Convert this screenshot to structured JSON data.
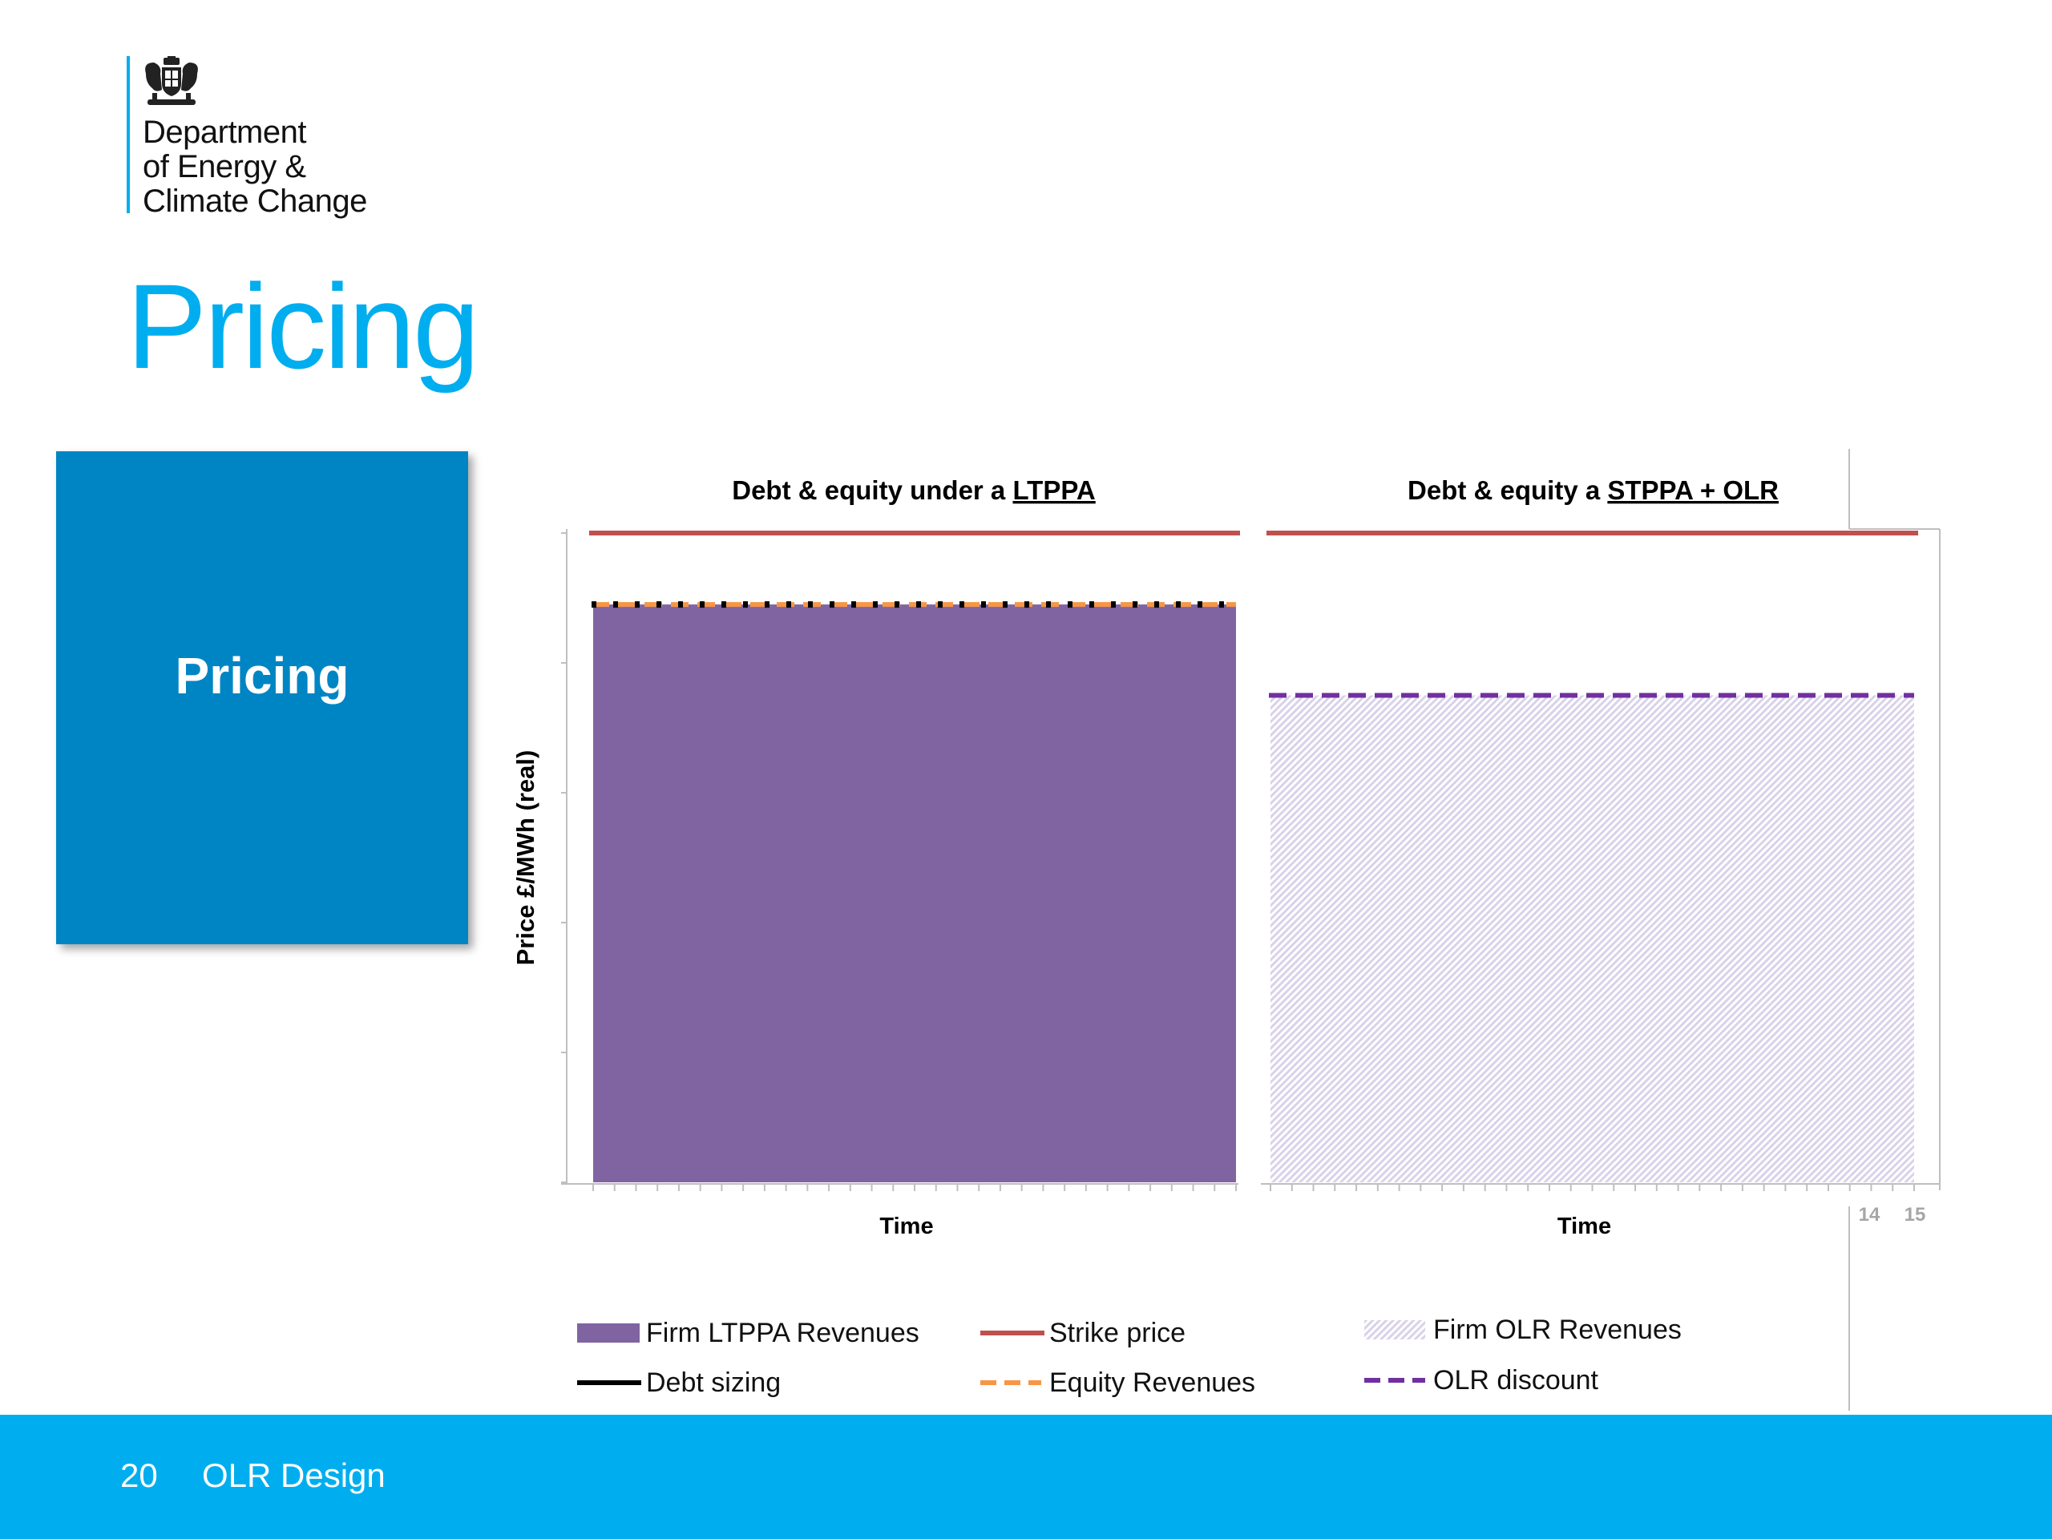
{
  "logo": {
    "lines": [
      "Department",
      "of Energy &",
      "Climate Change"
    ]
  },
  "page_title": "Pricing",
  "side_box_label": "Pricing",
  "chart_data": {
    "type": "bar",
    "panels": [
      {
        "title_prefix": "Debt & equity under a ",
        "title_underlined": "LTPPA",
        "xlabel": "Time",
        "bar_value": 89,
        "bar_color": "#8064a2",
        "bar_pattern": "solid",
        "lines": [
          {
            "name": "Strike price",
            "value": 100,
            "color": "#c0504d",
            "style": "solid"
          },
          {
            "name": "Equity Revenues",
            "value": 89,
            "color": "#f79646",
            "style": "dashed"
          },
          {
            "name": "Debt sizing",
            "value": 89,
            "color": "#000000",
            "style": "dotted"
          }
        ]
      },
      {
        "title_prefix": "Debt & equity  a ",
        "title_underlined": "STPPA + OLR",
        "xlabel": "Time",
        "bar_value": 75,
        "bar_color": "#d9d2e9",
        "bar_pattern": "hatched",
        "lines": [
          {
            "name": "Strike price",
            "value": 100,
            "color": "#c0504d",
            "style": "solid"
          },
          {
            "name": "OLR discount",
            "value": 75,
            "color": "#7030a0",
            "style": "dashed"
          }
        ]
      }
    ],
    "ylabel": "Price £/MWh (real)",
    "ylim": [
      0,
      100
    ],
    "extra_tick_labels": [
      "14",
      "15"
    ],
    "legend": [
      {
        "label": "Firm LTPPA Revenues",
        "type": "bar",
        "color": "#8064a2"
      },
      {
        "label": "Strike price",
        "type": "line",
        "color": "#c0504d"
      },
      {
        "label": "Firm OLR Revenues",
        "type": "hatched",
        "color": "#d9d2e9"
      },
      {
        "label": "Debt sizing",
        "type": "line",
        "color": "#000000"
      },
      {
        "label": "Equity Revenues",
        "type": "dashed",
        "color": "#f79646"
      },
      {
        "label": "OLR discount",
        "type": "dashed",
        "color": "#7030a0"
      }
    ]
  },
  "footer": {
    "page_number": "20",
    "title": "OLR Design"
  }
}
